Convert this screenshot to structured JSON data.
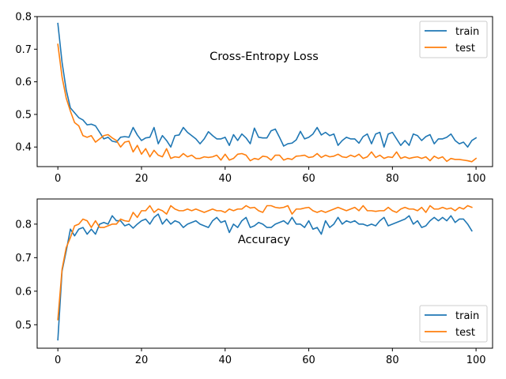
{
  "chart_data": [
    {
      "type": "line",
      "title": "Cross-Entropy Loss",
      "xlabel": "",
      "ylabel": "",
      "xlim": [
        -4.95,
        103.95
      ],
      "ylim": [
        0.34,
        0.8
      ],
      "xticks": [
        0,
        20,
        40,
        60,
        80,
        100
      ],
      "yticks": [
        0.4,
        0.5,
        0.6,
        0.7,
        0.8
      ],
      "grid": false,
      "legend_position": "top-right",
      "series": [
        {
          "name": "train",
          "color": "#1f77b4",
          "x_start": 0,
          "x_step": 1,
          "values": [
            0.779,
            0.66,
            0.575,
            0.52,
            0.505,
            0.49,
            0.483,
            0.468,
            0.47,
            0.465,
            0.445,
            0.425,
            0.43,
            0.418,
            0.415,
            0.43,
            0.432,
            0.43,
            0.46,
            0.437,
            0.42,
            0.428,
            0.43,
            0.46,
            0.41,
            0.435,
            0.42,
            0.4,
            0.435,
            0.437,
            0.46,
            0.445,
            0.435,
            0.425,
            0.41,
            0.425,
            0.447,
            0.435,
            0.425,
            0.425,
            0.43,
            0.405,
            0.438,
            0.42,
            0.44,
            0.428,
            0.41,
            0.458,
            0.43,
            0.428,
            0.428,
            0.45,
            0.455,
            0.43,
            0.403,
            0.41,
            0.412,
            0.422,
            0.448,
            0.425,
            0.43,
            0.44,
            0.46,
            0.437,
            0.445,
            0.435,
            0.44,
            0.405,
            0.42,
            0.43,
            0.425,
            0.425,
            0.412,
            0.432,
            0.44,
            0.41,
            0.44,
            0.445,
            0.4,
            0.44,
            0.445,
            0.425,
            0.405,
            0.42,
            0.405,
            0.44,
            0.435,
            0.42,
            0.432,
            0.438,
            0.41,
            0.425,
            0.425,
            0.43,
            0.44,
            0.42,
            0.41,
            0.415,
            0.4,
            0.42,
            0.428
          ]
        },
        {
          "name": "test",
          "color": "#ff7f0e",
          "x_start": 0,
          "x_step": 1,
          "values": [
            0.715,
            0.615,
            0.55,
            0.51,
            0.475,
            0.465,
            0.435,
            0.43,
            0.435,
            0.415,
            0.425,
            0.435,
            0.438,
            0.428,
            0.42,
            0.4,
            0.415,
            0.418,
            0.385,
            0.405,
            0.378,
            0.395,
            0.37,
            0.39,
            0.375,
            0.37,
            0.395,
            0.365,
            0.37,
            0.368,
            0.38,
            0.37,
            0.375,
            0.365,
            0.365,
            0.37,
            0.368,
            0.37,
            0.375,
            0.36,
            0.378,
            0.36,
            0.365,
            0.378,
            0.38,
            0.375,
            0.358,
            0.365,
            0.362,
            0.372,
            0.37,
            0.36,
            0.375,
            0.375,
            0.36,
            0.365,
            0.362,
            0.372,
            0.373,
            0.375,
            0.368,
            0.37,
            0.38,
            0.368,
            0.375,
            0.37,
            0.372,
            0.378,
            0.37,
            0.368,
            0.375,
            0.37,
            0.378,
            0.365,
            0.37,
            0.385,
            0.368,
            0.375,
            0.365,
            0.37,
            0.368,
            0.385,
            0.365,
            0.37,
            0.365,
            0.368,
            0.37,
            0.365,
            0.37,
            0.358,
            0.372,
            0.365,
            0.37,
            0.356,
            0.365,
            0.362,
            0.362,
            0.36,
            0.358,
            0.355,
            0.365
          ]
        }
      ]
    },
    {
      "type": "line",
      "title": "Accuracy",
      "xlabel": "",
      "ylabel": "",
      "xlim": [
        -4.95,
        103.95
      ],
      "ylim": [
        0.43,
        0.875
      ],
      "xticks": [
        0,
        20,
        40,
        60,
        80,
        100
      ],
      "yticks": [
        0.5,
        0.6,
        0.7,
        0.8
      ],
      "grid": false,
      "legend_position": "bottom-right",
      "series": [
        {
          "name": "train",
          "color": "#1f77b4",
          "x_start": 0,
          "x_step": 1,
          "values": [
            0.455,
            0.66,
            0.72,
            0.785,
            0.765,
            0.785,
            0.79,
            0.77,
            0.785,
            0.77,
            0.8,
            0.805,
            0.8,
            0.825,
            0.81,
            0.81,
            0.795,
            0.8,
            0.788,
            0.8,
            0.81,
            0.815,
            0.8,
            0.82,
            0.83,
            0.8,
            0.815,
            0.8,
            0.81,
            0.805,
            0.79,
            0.8,
            0.805,
            0.81,
            0.8,
            0.795,
            0.79,
            0.81,
            0.82,
            0.805,
            0.81,
            0.775,
            0.8,
            0.79,
            0.81,
            0.82,
            0.79,
            0.795,
            0.805,
            0.8,
            0.79,
            0.79,
            0.8,
            0.805,
            0.81,
            0.8,
            0.82,
            0.8,
            0.8,
            0.79,
            0.81,
            0.785,
            0.79,
            0.77,
            0.81,
            0.79,
            0.8,
            0.82,
            0.8,
            0.81,
            0.805,
            0.81,
            0.8,
            0.8,
            0.795,
            0.8,
            0.795,
            0.81,
            0.82,
            0.795,
            0.8,
            0.805,
            0.81,
            0.815,
            0.825,
            0.8,
            0.81,
            0.79,
            0.795,
            0.81,
            0.82,
            0.81,
            0.82,
            0.81,
            0.825,
            0.805,
            0.815,
            0.815,
            0.8,
            0.78
          ]
        },
        {
          "name": "test",
          "color": "#ff7f0e",
          "x_start": 0,
          "x_step": 1,
          "values": [
            0.515,
            0.665,
            0.73,
            0.76,
            0.795,
            0.8,
            0.815,
            0.81,
            0.79,
            0.81,
            0.79,
            0.79,
            0.795,
            0.8,
            0.8,
            0.815,
            0.81,
            0.808,
            0.835,
            0.82,
            0.84,
            0.84,
            0.855,
            0.835,
            0.845,
            0.84,
            0.83,
            0.855,
            0.845,
            0.84,
            0.84,
            0.845,
            0.84,
            0.845,
            0.84,
            0.835,
            0.84,
            0.845,
            0.84,
            0.84,
            0.835,
            0.845,
            0.84,
            0.845,
            0.845,
            0.855,
            0.848,
            0.85,
            0.84,
            0.835,
            0.855,
            0.855,
            0.85,
            0.848,
            0.85,
            0.855,
            0.83,
            0.845,
            0.845,
            0.848,
            0.85,
            0.84,
            0.835,
            0.84,
            0.835,
            0.84,
            0.845,
            0.85,
            0.845,
            0.84,
            0.845,
            0.85,
            0.84,
            0.855,
            0.84,
            0.84,
            0.838,
            0.84,
            0.84,
            0.85,
            0.84,
            0.835,
            0.845,
            0.85,
            0.845,
            0.845,
            0.84,
            0.85,
            0.835,
            0.855,
            0.845,
            0.845,
            0.85,
            0.845,
            0.848,
            0.84,
            0.85,
            0.845,
            0.855,
            0.85
          ]
        }
      ]
    }
  ]
}
